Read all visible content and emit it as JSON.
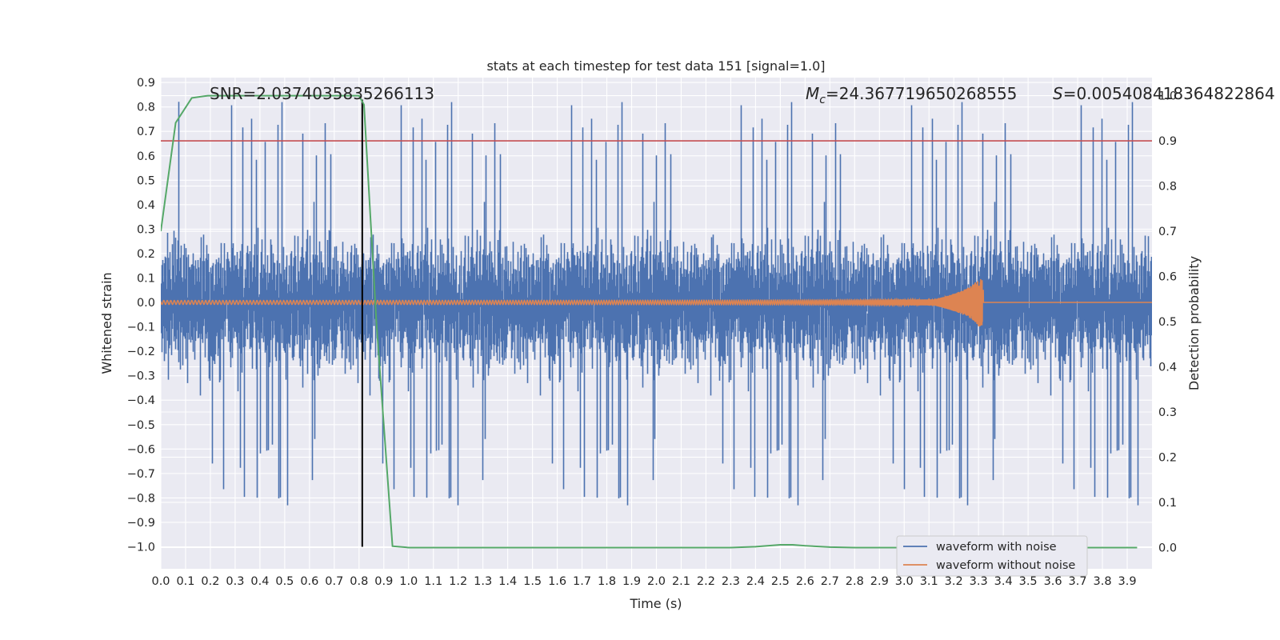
{
  "chart_data": {
    "type": "line",
    "title": "stats at each timestep for test data 151 [signal=1.0]",
    "xlabel": "Time (s)",
    "ylabel": "Whitened strain",
    "y2label": "Detection probability",
    "xlim": [
      0.0,
      4.0
    ],
    "ylim": [
      -1.09,
      0.92
    ],
    "y2lim": [
      -0.047,
      1.04
    ],
    "xticks": [
      "0.0",
      "0.1",
      "0.2",
      "0.3",
      "0.4",
      "0.5",
      "0.6",
      "0.7",
      "0.8",
      "0.9",
      "1.0",
      "1.1",
      "1.2",
      "1.3",
      "1.4",
      "1.5",
      "1.6",
      "1.7",
      "1.8",
      "1.9",
      "2.0",
      "2.1",
      "2.2",
      "2.3",
      "2.4",
      "2.5",
      "2.6",
      "2.7",
      "2.8",
      "2.9",
      "3.0",
      "3.1",
      "3.2",
      "3.3",
      "3.4",
      "3.5",
      "3.6",
      "3.7",
      "3.8",
      "3.9"
    ],
    "yticks": [
      "0.9",
      "0.8",
      "0.7",
      "0.6",
      "0.5",
      "0.4",
      "0.3",
      "0.2",
      "0.1",
      "0.0",
      "−0.1",
      "−0.2",
      "−0.3",
      "−0.4",
      "−0.5",
      "−0.6",
      "−0.7",
      "−0.8",
      "−0.9",
      "−1.0"
    ],
    "y2ticks": [
      "1.0",
      "0.9",
      "0.8",
      "0.7",
      "0.6",
      "0.5",
      "0.4",
      "0.3",
      "0.2",
      "0.1",
      "0.0"
    ],
    "grid": true,
    "legend_position": "bottom-right",
    "annotations": {
      "snr": "SNR=2.0374035835266113",
      "mc_symbol": "M",
      "mc_sub": "c",
      "mc_value": "=24.367719650268555",
      "s_symbol": "S",
      "s_value": "=0.005408418364822864"
    },
    "series": [
      {
        "name": "waveform with noise",
        "axis": "left",
        "color": "#4c72b0",
        "description": "whitened noisy strain sampled over 0–4 s, amplitude mostly within ±0.5 with spikes to about ±0.8",
        "sample_rate_hz": 2048
      },
      {
        "name": "waveform without noise",
        "axis": "left",
        "color": "#dd8452",
        "description": "chirp signal growing in amplitude and frequency, peaking near t=3.32 s at about ±0.1, then zero"
      },
      {
        "name": "",
        "axis": "right",
        "color": "#55a868",
        "x": [
          0.0,
          0.06,
          0.125,
          0.19,
          0.25,
          0.4,
          0.6,
          0.8,
          0.82,
          0.87,
          0.935,
          1.0,
          1.5,
          2.0,
          2.3,
          2.4,
          2.5,
          2.55,
          2.6,
          2.7,
          2.8,
          3.0,
          3.5,
          3.94
        ],
        "values": [
          0.7,
          0.94,
          0.995,
          1.0,
          1.0,
          1.0,
          1.0,
          1.0,
          0.98,
          0.5,
          0.003,
          0.0,
          0.0,
          0.0,
          0.0,
          0.002,
          0.006,
          0.006,
          0.004,
          0.001,
          0.0,
          0.0,
          0.0,
          0.0
        ]
      }
    ],
    "threshold_line": {
      "axis": "right",
      "value": 0.9,
      "color": "#c44e52"
    },
    "marker_line": {
      "x": 0.813,
      "axis": "left",
      "from": -1.0,
      "to": 0.83,
      "color": "#000000"
    }
  }
}
